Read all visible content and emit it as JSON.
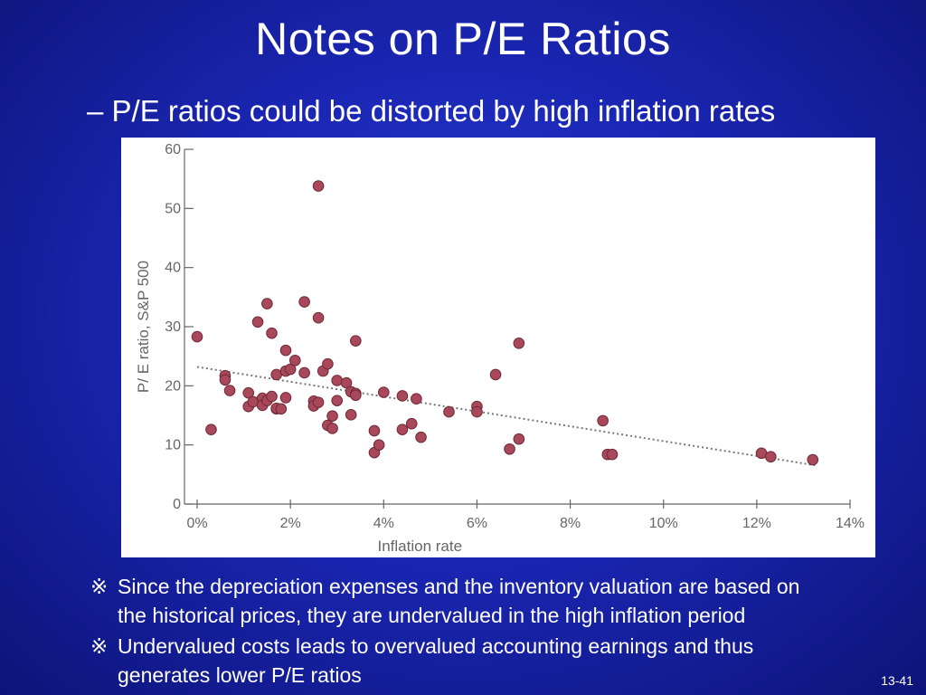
{
  "slide": {
    "title": "Notes on P/E Ratios",
    "subtitle": "– P/E ratios could be distorted by high inflation rates",
    "page_number": "13-41",
    "notes": [
      {
        "mark": "※",
        "line1": "Since the depreciation expenses and the inventory valuation are based on",
        "line2": "the historical prices, they are undervalued in the high inflation period"
      },
      {
        "mark": "※",
        "line1": "Undervalued costs leads to overvalued accounting earnings and thus",
        "line2": "generates lower P/E ratios"
      }
    ]
  },
  "colors": {
    "point_fill": "#a8485a",
    "point_stroke": "#6e2a36",
    "trend": "#777777",
    "axis": "#666666"
  },
  "chart_data": {
    "type": "scatter",
    "xlabel": "Inflation rate",
    "ylabel": "P/ E ratio, S&P 500",
    "xlim": [
      0,
      14
    ],
    "ylim": [
      0,
      60
    ],
    "x_ticks": [
      0,
      2,
      4,
      6,
      8,
      10,
      12,
      14
    ],
    "x_tick_labels": [
      "0%",
      "2%",
      "4%",
      "6%",
      "8%",
      "10%",
      "12%",
      "14%"
    ],
    "y_ticks": [
      0,
      10,
      20,
      30,
      40,
      50,
      60
    ],
    "y_tick_labels": [
      "0",
      "10",
      "20",
      "30",
      "40",
      "50",
      "60"
    ],
    "trendline": {
      "x": [
        0,
        13.3
      ],
      "y": [
        23.2,
        6.5
      ]
    },
    "points": [
      {
        "x": 0.0,
        "y": 28.3
      },
      {
        "x": 0.3,
        "y": 12.6
      },
      {
        "x": 0.6,
        "y": 21.7
      },
      {
        "x": 0.6,
        "y": 21.0
      },
      {
        "x": 0.7,
        "y": 19.2
      },
      {
        "x": 1.1,
        "y": 16.5
      },
      {
        "x": 1.1,
        "y": 18.8
      },
      {
        "x": 1.2,
        "y": 17.3
      },
      {
        "x": 1.3,
        "y": 30.8
      },
      {
        "x": 1.4,
        "y": 17.9
      },
      {
        "x": 1.4,
        "y": 16.7
      },
      {
        "x": 1.5,
        "y": 33.9
      },
      {
        "x": 1.5,
        "y": 17.5
      },
      {
        "x": 1.6,
        "y": 28.9
      },
      {
        "x": 1.6,
        "y": 18.2
      },
      {
        "x": 1.7,
        "y": 21.9
      },
      {
        "x": 1.7,
        "y": 16.1
      },
      {
        "x": 1.7,
        "y": 16.2
      },
      {
        "x": 1.8,
        "y": 16.1
      },
      {
        "x": 1.9,
        "y": 26.0
      },
      {
        "x": 1.9,
        "y": 22.5
      },
      {
        "x": 1.9,
        "y": 18.0
      },
      {
        "x": 2.0,
        "y": 22.8
      },
      {
        "x": 2.1,
        "y": 24.3
      },
      {
        "x": 2.3,
        "y": 22.2
      },
      {
        "x": 2.3,
        "y": 34.2
      },
      {
        "x": 2.5,
        "y": 17.4
      },
      {
        "x": 2.5,
        "y": 16.6
      },
      {
        "x": 2.6,
        "y": 31.5
      },
      {
        "x": 2.6,
        "y": 17.2
      },
      {
        "x": 2.6,
        "y": 53.8
      },
      {
        "x": 2.7,
        "y": 22.5
      },
      {
        "x": 2.8,
        "y": 23.7
      },
      {
        "x": 2.8,
        "y": 13.3
      },
      {
        "x": 2.9,
        "y": 14.9
      },
      {
        "x": 2.9,
        "y": 12.8
      },
      {
        "x": 3.0,
        "y": 20.9
      },
      {
        "x": 3.0,
        "y": 17.5
      },
      {
        "x": 3.2,
        "y": 20.5
      },
      {
        "x": 3.3,
        "y": 19.0
      },
      {
        "x": 3.3,
        "y": 15.1
      },
      {
        "x": 3.4,
        "y": 18.7
      },
      {
        "x": 3.4,
        "y": 27.6
      },
      {
        "x": 3.4,
        "y": 18.4
      },
      {
        "x": 3.8,
        "y": 12.4
      },
      {
        "x": 3.8,
        "y": 8.7
      },
      {
        "x": 3.9,
        "y": 10.0
      },
      {
        "x": 4.0,
        "y": 18.9
      },
      {
        "x": 4.4,
        "y": 18.3
      },
      {
        "x": 4.4,
        "y": 12.6
      },
      {
        "x": 4.6,
        "y": 13.6
      },
      {
        "x": 4.7,
        "y": 17.8
      },
      {
        "x": 4.8,
        "y": 11.3
      },
      {
        "x": 5.4,
        "y": 15.6
      },
      {
        "x": 6.0,
        "y": 16.5
      },
      {
        "x": 6.0,
        "y": 15.6
      },
      {
        "x": 6.4,
        "y": 21.9
      },
      {
        "x": 6.7,
        "y": 9.3
      },
      {
        "x": 6.9,
        "y": 27.2
      },
      {
        "x": 6.9,
        "y": 11.0
      },
      {
        "x": 8.7,
        "y": 14.1
      },
      {
        "x": 8.8,
        "y": 8.4
      },
      {
        "x": 8.9,
        "y": 8.4
      },
      {
        "x": 12.1,
        "y": 8.6
      },
      {
        "x": 12.3,
        "y": 8.0
      },
      {
        "x": 13.2,
        "y": 7.5
      }
    ]
  }
}
